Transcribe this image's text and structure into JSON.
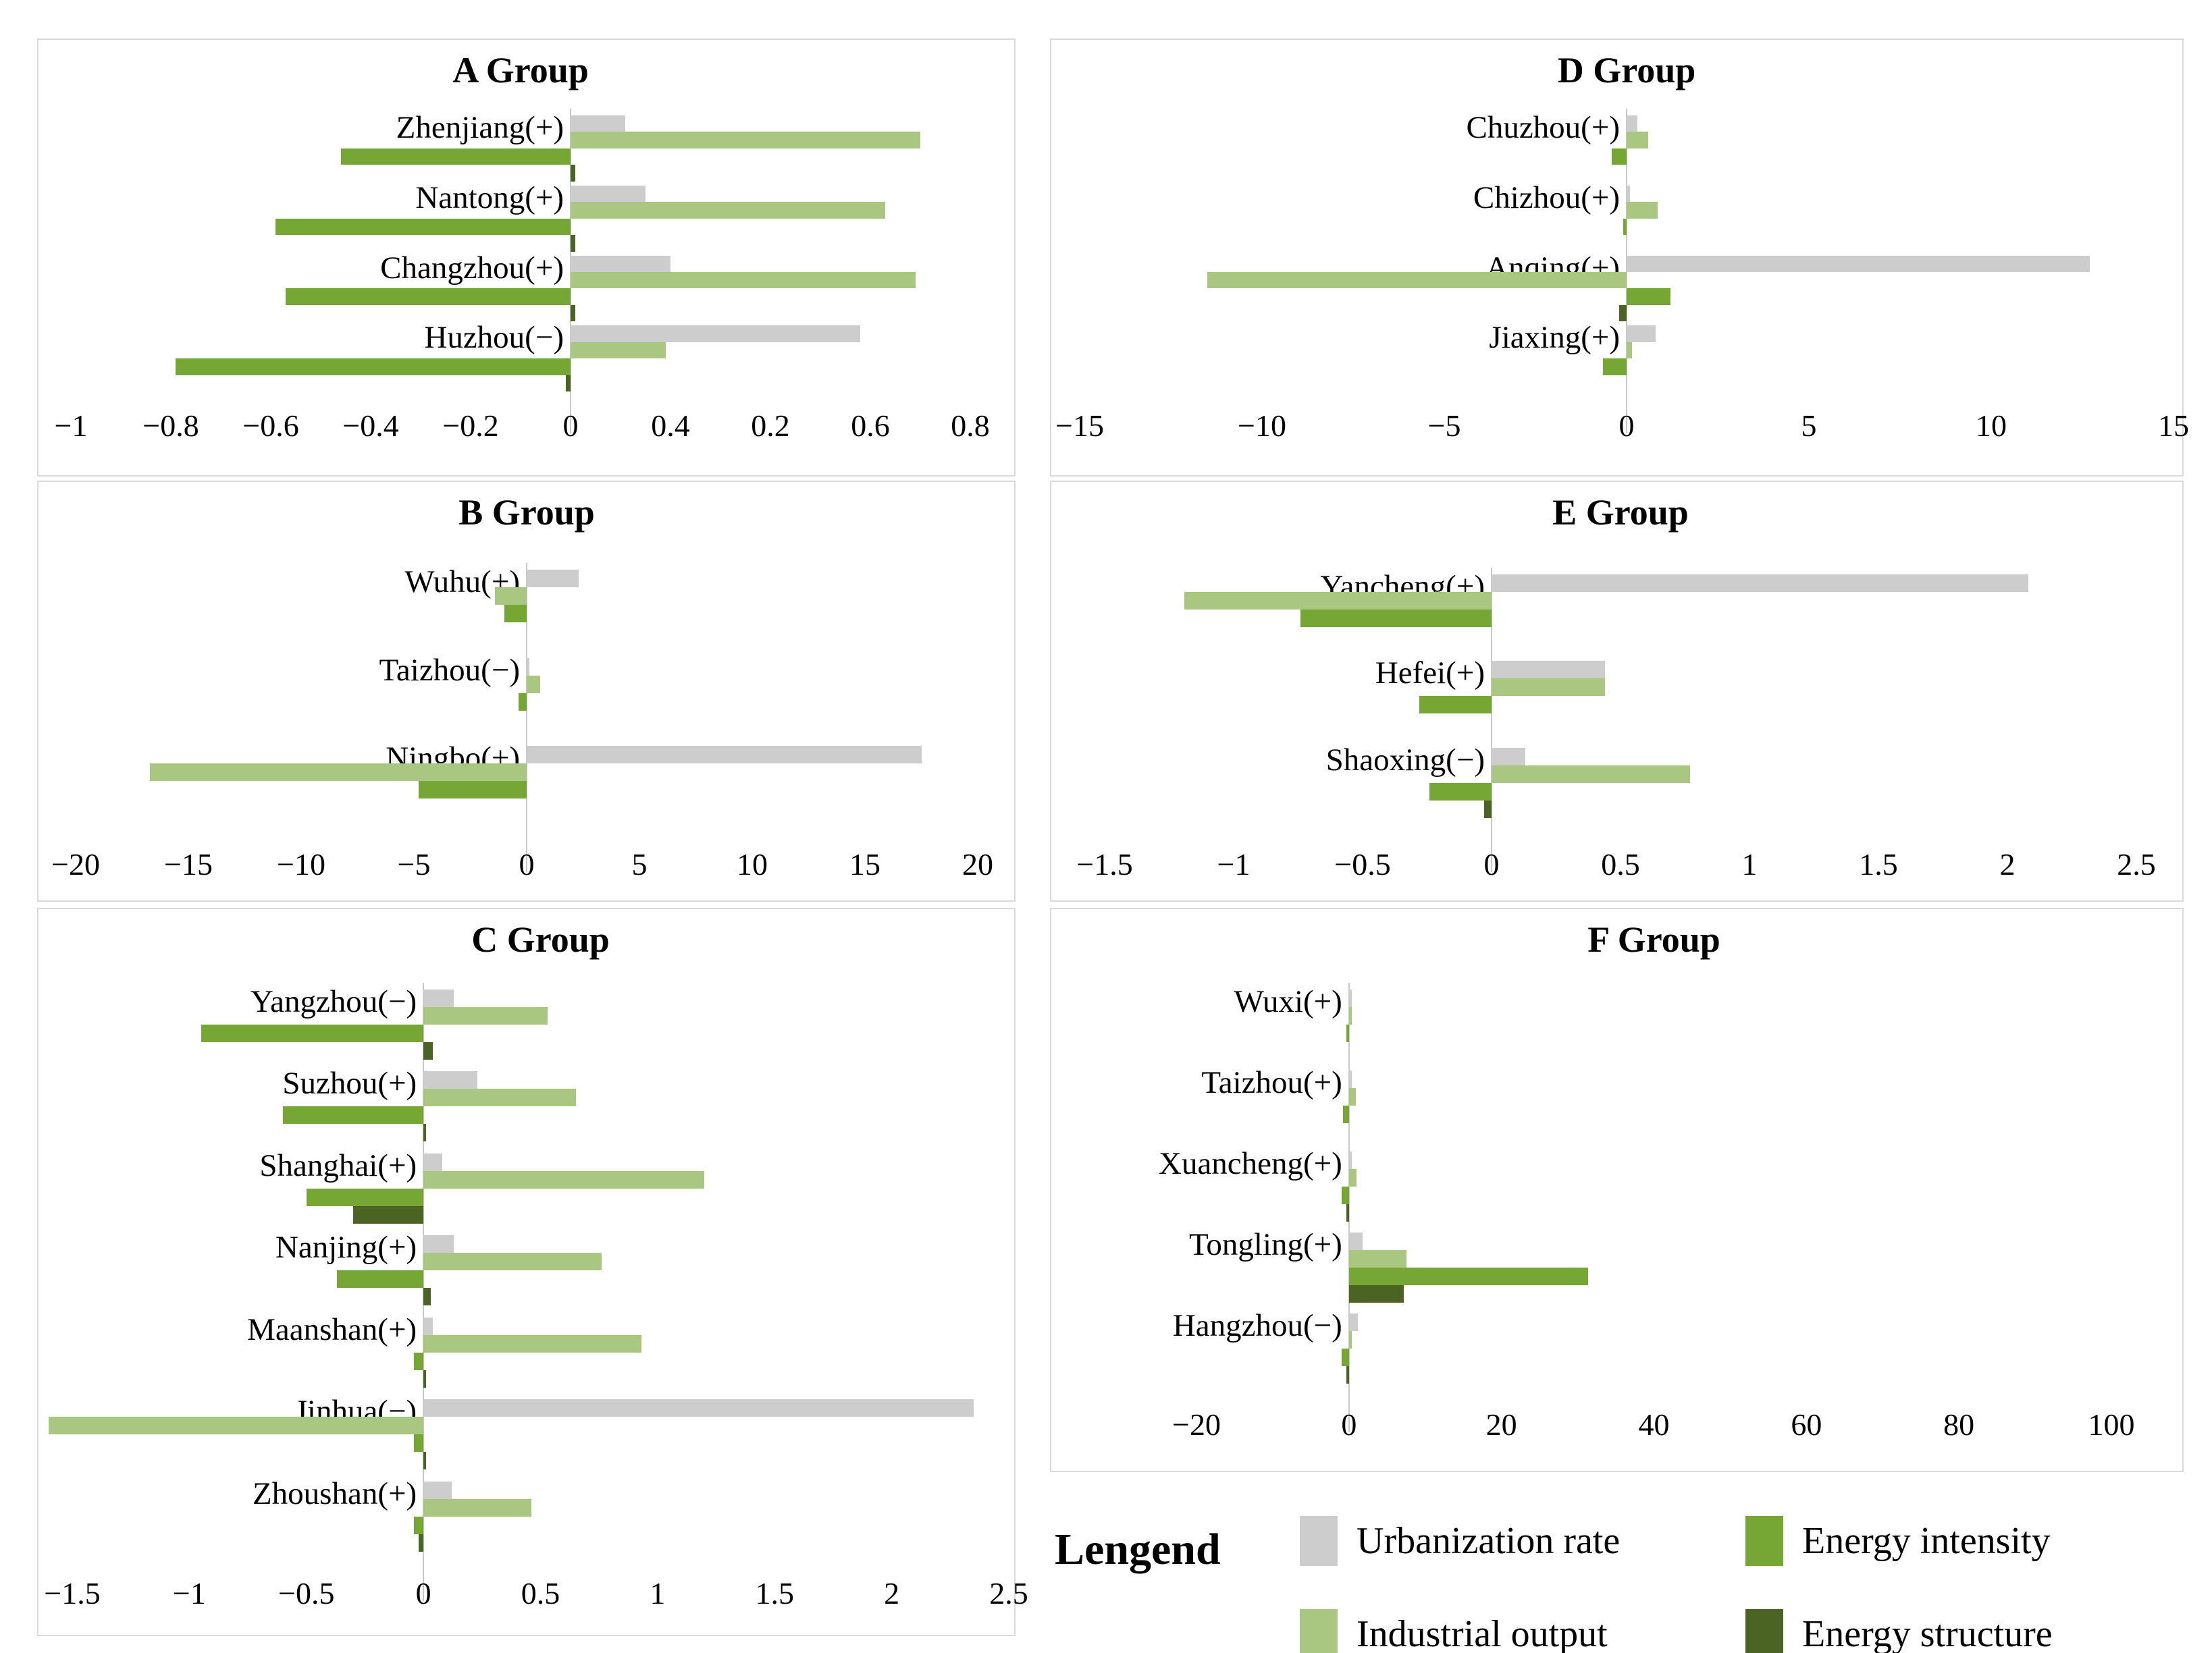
{
  "legend": {
    "title": "Lengend",
    "items": [
      {
        "label": "Urbanization rate",
        "series": "urbanization"
      },
      {
        "label": "Energy intensity",
        "series": "intensity"
      },
      {
        "label": "Industrial output",
        "series": "industrial"
      },
      {
        "label": "Energy structure",
        "series": "structure"
      }
    ]
  },
  "series_order": [
    "urbanization",
    "industrial",
    "intensity",
    "structure"
  ],
  "series_colors": {
    "urbanization": "#cecdcd",
    "industrial": "#a9c781",
    "intensity": "#76a633",
    "structure": "#4b6423"
  },
  "chart_data": [
    {
      "id": "A",
      "type": "bar",
      "title": "A Group",
      "xlim": [
        -1,
        0.8
      ],
      "xticks": [
        "−1",
        "−0.8",
        "−0.6",
        "−0.4",
        "−0.2",
        "0",
        "0.4",
        "0.2",
        "0.6",
        "0.8"
      ],
      "legend_position": "shared-bottom-right",
      "grid": false,
      "cities": [
        {
          "label": "Zhenjiang(+)",
          "urbanization": 0.11,
          "industrial": 0.7,
          "intensity": -0.46,
          "structure": 0.01
        },
        {
          "label": "Nantong(+)",
          "urbanization": 0.15,
          "industrial": 0.63,
          "intensity": -0.59,
          "structure": 0.01
        },
        {
          "label": "Changzhou(+)",
          "urbanization": 0.2,
          "industrial": 0.69,
          "intensity": -0.57,
          "structure": 0.01
        },
        {
          "label": "Huzhou(−)",
          "urbanization": 0.58,
          "industrial": 0.19,
          "intensity": -0.79,
          "structure": -0.01
        }
      ]
    },
    {
      "id": "B",
      "type": "bar",
      "title": "B Group",
      "xlim": [
        -20,
        20
      ],
      "xticks": [
        "−20",
        "−15",
        "−10",
        "−5",
        "0",
        "5",
        "10",
        "15",
        "20"
      ],
      "legend_position": "shared-bottom-right",
      "grid": false,
      "cities": [
        {
          "label": "Wuhu(+)",
          "urbanization": 2.3,
          "industrial": -1.4,
          "intensity": -1.0,
          "structure": 0
        },
        {
          "label": "Taizhou(−)",
          "urbanization": 0.1,
          "industrial": 0.6,
          "intensity": -0.35,
          "structure": 0
        },
        {
          "label": "Ningbo(+)",
          "urbanization": 17.5,
          "industrial": -16.7,
          "intensity": -4.8,
          "structure": 0
        }
      ]
    },
    {
      "id": "C",
      "type": "bar",
      "title": "C Group",
      "xlim": [
        -1.5,
        2.5
      ],
      "xticks": [
        "−1.5",
        "−1",
        "−0.5",
        "0",
        "0.5",
        "1",
        "1.5",
        "2",
        "2.5"
      ],
      "legend_position": "shared-bottom-right",
      "grid": false,
      "cities": [
        {
          "label": "Yangzhou(−)",
          "urbanization": 0.13,
          "industrial": 0.53,
          "intensity": -0.95,
          "structure": 0.04
        },
        {
          "label": "Suzhou(+)",
          "urbanization": 0.23,
          "industrial": 0.65,
          "intensity": -0.6,
          "structure": 0.01
        },
        {
          "label": "Shanghai(+)",
          "urbanization": 0.08,
          "industrial": 1.2,
          "intensity": -0.5,
          "structure": -0.3
        },
        {
          "label": "Nanjing(+)",
          "urbanization": 0.13,
          "industrial": 0.76,
          "intensity": -0.37,
          "structure": 0.03
        },
        {
          "label": "Maanshan(+)",
          "urbanization": 0.04,
          "industrial": 0.93,
          "intensity": -0.04,
          "structure": 0.01
        },
        {
          "label": "Jinhua(−)",
          "urbanization": 2.35,
          "industrial": -1.6,
          "intensity": -0.04,
          "structure": 0.01
        },
        {
          "label": "Zhoushan(+)",
          "urbanization": 0.12,
          "industrial": 0.46,
          "intensity": -0.04,
          "structure": -0.02
        }
      ]
    },
    {
      "id": "D",
      "type": "bar",
      "title": "D Group",
      "xlim": [
        -15,
        15
      ],
      "xticks": [
        "−15",
        "−10",
        "−5",
        "0",
        "5",
        "10",
        "15"
      ],
      "legend_position": "shared-bottom-right",
      "grid": false,
      "cities": [
        {
          "label": "Chuzhou(+)",
          "urbanization": 0.3,
          "industrial": 0.6,
          "intensity": -0.4,
          "structure": 0
        },
        {
          "label": "Chizhou(+)",
          "urbanization": 0.1,
          "industrial": 0.85,
          "intensity": -0.1,
          "structure": 0
        },
        {
          "label": "Anqing(+)",
          "urbanization": 12.7,
          "industrial": -11.5,
          "intensity": 1.2,
          "structure": -0.2
        },
        {
          "label": "Jiaxing(+)",
          "urbanization": 0.8,
          "industrial": 0.15,
          "intensity": -0.65,
          "structure": 0
        }
      ]
    },
    {
      "id": "E",
      "type": "bar",
      "title": "E Group",
      "xlim": [
        -1.5,
        2.5
      ],
      "xticks": [
        "−1.5",
        "−1",
        "−0.5",
        "0",
        "0.5",
        "1",
        "1.5",
        "2",
        "2.5"
      ],
      "legend_position": "shared-bottom-right",
      "grid": false,
      "cities": [
        {
          "label": "Yancheng(+)",
          "urbanization": 2.08,
          "industrial": -1.19,
          "intensity": -0.74,
          "structure": 0
        },
        {
          "label": "Hefei(+)",
          "urbanization": 0.44,
          "industrial": 0.44,
          "intensity": -0.28,
          "structure": 0
        },
        {
          "label": "Shaoxing(−)",
          "urbanization": 0.13,
          "industrial": 0.77,
          "intensity": -0.24,
          "structure": -0.03
        }
      ]
    },
    {
      "id": "F",
      "type": "bar",
      "title": "F Group",
      "xlim": [
        -20,
        100
      ],
      "xticks": [
        "−20",
        "0",
        "20",
        "40",
        "60",
        "80",
        "100"
      ],
      "legend_position": "shared-bottom-right",
      "grid": false,
      "cities": [
        {
          "label": "Wuxi(+)",
          "urbanization": 0.3,
          "industrial": 0.2,
          "intensity": -0.2,
          "structure": 0
        },
        {
          "label": "Taizhou(+)",
          "urbanization": 0.3,
          "industrial": 0.9,
          "intensity": -0.8,
          "structure": 0
        },
        {
          "label": "Xuancheng(+)",
          "urbanization": 0.2,
          "industrial": 1.0,
          "intensity": -1.0,
          "structure": -0.2
        },
        {
          "label": "Tongling(+)",
          "urbanization": 1.8,
          "industrial": 7.5,
          "intensity": 31.4,
          "structure": 7.2
        },
        {
          "label": "Hangzhou(−)",
          "urbanization": 1.2,
          "industrial": 0.4,
          "intensity": -1.0,
          "structure": -0.3
        }
      ]
    }
  ]
}
